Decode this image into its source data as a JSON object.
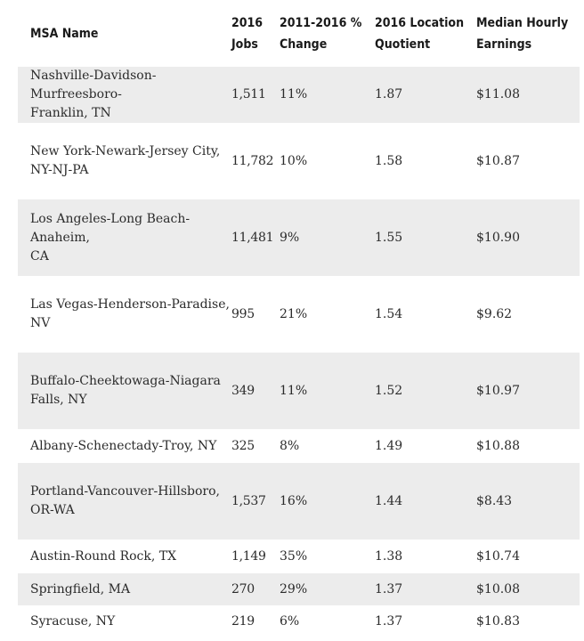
{
  "table": {
    "headers": {
      "msa": "MSA Name",
      "jobs": "2016 Jobs",
      "change": "2011-2016 % Change",
      "lq": "2016 Location Quotient",
      "earnings": "Median Hourly Earnings"
    },
    "header_lines": {
      "jobs": [
        "2016",
        "Jobs"
      ],
      "change": [
        "2011-2016 %",
        "Change"
      ],
      "lq": [
        "2016 Location",
        "Quotient"
      ],
      "earnings": [
        "Median Hourly",
        "Earnings"
      ]
    },
    "rows": [
      {
        "msa": "Nashville-Davidson-Murfreesboro-Franklin, TN",
        "msa_lines": [
          "Nashville-Davidson-Murfreesboro-",
          "Franklin, TN"
        ],
        "jobs": "1,511",
        "change": "11%",
        "lq": "1.87",
        "earnings": "$11.08"
      },
      {
        "msa": "New York-Newark-Jersey City, NY-NJ-PA",
        "msa_lines": [
          "New York-Newark-Jersey City,",
          "NY-NJ-PA"
        ],
        "jobs": "11,782",
        "change": "10%",
        "lq": "1.58",
        "earnings": "$10.87"
      },
      {
        "msa": "Los Angeles-Long Beach-Anaheim, CA",
        "msa_lines": [
          "Los Angeles-Long Beach-Anaheim,",
          "CA"
        ],
        "jobs": "11,481",
        "change": "9%",
        "lq": "1.55",
        "earnings": "$10.90"
      },
      {
        "msa": "Las Vegas-Henderson-Paradise, NV",
        "msa_lines": [
          "Las Vegas-Henderson-Paradise,",
          "NV"
        ],
        "jobs": "995",
        "change": "21%",
        "lq": "1.54",
        "earnings": "$9.62"
      },
      {
        "msa": "Buffalo-Cheektowaga-Niagara Falls, NY",
        "msa_lines": [
          "Buffalo-Cheektowaga-Niagara",
          "Falls, NY"
        ],
        "jobs": "349",
        "change": "11%",
        "lq": "1.52",
        "earnings": "$10.97"
      },
      {
        "msa": "Albany-Schenectady-Troy, NY",
        "msa_lines": [
          "Albany-Schenectady-Troy, NY"
        ],
        "jobs": "325",
        "change": "8%",
        "lq": "1.49",
        "earnings": "$10.88"
      },
      {
        "msa": "Portland-Vancouver-Hillsboro, OR-WA",
        "msa_lines": [
          "Portland-Vancouver-Hillsboro,",
          "OR-WA"
        ],
        "jobs": "1,537",
        "change": "16%",
        "lq": "1.44",
        "earnings": "$8.43"
      },
      {
        "msa": "Austin-Round Rock, TX",
        "msa_lines": [
          "Austin-Round Rock, TX"
        ],
        "jobs": "1,149",
        "change": "35%",
        "lq": "1.38",
        "earnings": "$10.74"
      },
      {
        "msa": "Springfield, MA",
        "msa_lines": [
          "Springfield, MA"
        ],
        "jobs": "270",
        "change": "29%",
        "lq": "1.37",
        "earnings": "$10.08"
      },
      {
        "msa": "Syracuse, NY",
        "msa_lines": [
          "Syracuse, NY"
        ],
        "jobs": "219",
        "change": "6%",
        "lq": "1.37",
        "earnings": "$10.83"
      }
    ]
  },
  "colors": {
    "stripe": "#ececec",
    "text": "#2b2b2b",
    "header_text": "#1a1a1a"
  }
}
